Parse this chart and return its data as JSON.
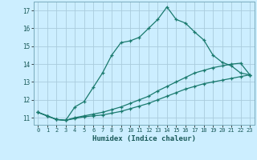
{
  "xlabel": "Humidex (Indice chaleur)",
  "bg_color": "#cceeff",
  "grid_color": "#aaccdd",
  "line_color": "#1a7a6e",
  "xlim": [
    -0.5,
    23.5
  ],
  "ylim": [
    10.6,
    17.5
  ],
  "xticks": [
    0,
    1,
    2,
    3,
    4,
    5,
    6,
    7,
    8,
    9,
    10,
    11,
    12,
    13,
    14,
    15,
    16,
    17,
    18,
    19,
    20,
    21,
    22,
    23
  ],
  "yticks": [
    11,
    12,
    13,
    14,
    15,
    16,
    17
  ],
  "series1_x": [
    0,
    1,
    2,
    3,
    4,
    5,
    6,
    7,
    8,
    9,
    10,
    11,
    12,
    13,
    14,
    15,
    16,
    17,
    18,
    19,
    20,
    21,
    22,
    23
  ],
  "series1_y": [
    11.3,
    11.1,
    10.9,
    10.85,
    11.6,
    11.9,
    12.7,
    13.5,
    14.5,
    15.2,
    15.3,
    15.5,
    16.0,
    16.5,
    17.2,
    16.5,
    16.3,
    15.8,
    15.35,
    14.5,
    14.1,
    13.9,
    13.5,
    13.4
  ],
  "series2_x": [
    0,
    1,
    2,
    3,
    4,
    5,
    6,
    7,
    8,
    9,
    10,
    11,
    12,
    13,
    14,
    15,
    16,
    17,
    18,
    19,
    20,
    21,
    22,
    23
  ],
  "series2_y": [
    11.3,
    11.1,
    10.9,
    10.85,
    11.0,
    11.1,
    11.2,
    11.3,
    11.45,
    11.6,
    11.8,
    12.0,
    12.2,
    12.5,
    12.75,
    13.0,
    13.25,
    13.5,
    13.65,
    13.8,
    13.9,
    14.0,
    14.05,
    13.4
  ],
  "series3_x": [
    0,
    1,
    2,
    3,
    4,
    5,
    6,
    7,
    8,
    9,
    10,
    11,
    12,
    13,
    14,
    15,
    16,
    17,
    18,
    19,
    20,
    21,
    22,
    23
  ],
  "series3_y": [
    11.3,
    11.1,
    10.9,
    10.85,
    10.95,
    11.05,
    11.1,
    11.15,
    11.25,
    11.35,
    11.5,
    11.65,
    11.8,
    12.0,
    12.2,
    12.4,
    12.6,
    12.75,
    12.9,
    13.0,
    13.1,
    13.2,
    13.3,
    13.4
  ]
}
